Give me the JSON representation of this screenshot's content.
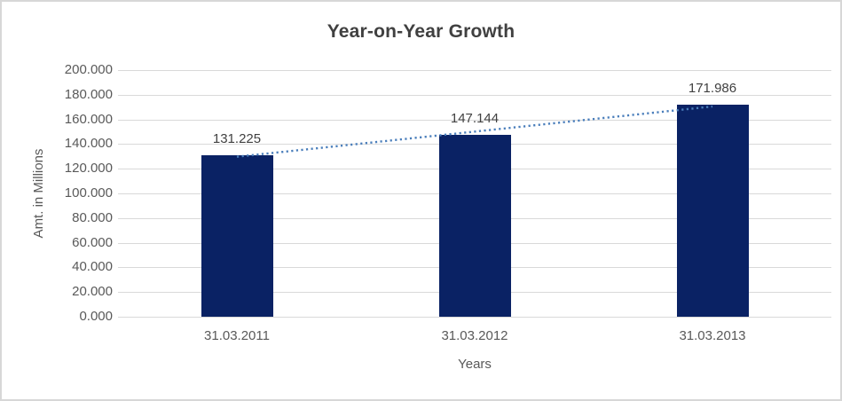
{
  "chart_data": {
    "type": "bar",
    "title": "Year-on-Year Growth",
    "xlabel": "Years",
    "ylabel": "Amt. in Millions",
    "categories": [
      "31.03.2011",
      "31.03.2012",
      "31.03.2013"
    ],
    "values": [
      131.225,
      147.144,
      171.986
    ],
    "data_labels": [
      "131.225",
      "147.144",
      "171.986"
    ],
    "ylim": [
      0,
      200
    ],
    "ytick_step": 20,
    "ytick_labels": [
      "0.000",
      "20.000",
      "40.000",
      "60.000",
      "80.000",
      "100.000",
      "120.000",
      "140.000",
      "160.000",
      "180.000",
      "200.000"
    ],
    "grid": true,
    "legend": false,
    "colors": {
      "bar": "#0a2264",
      "trendline": "#4a7ebb",
      "gridline": "#d9d9d9",
      "title_text": "#404040",
      "axis_text": "#595959",
      "data_label_text": "#404040"
    },
    "trendline": {
      "type": "linear",
      "style": "dotted",
      "start_value": 129.74,
      "end_value": 170.49
    }
  }
}
